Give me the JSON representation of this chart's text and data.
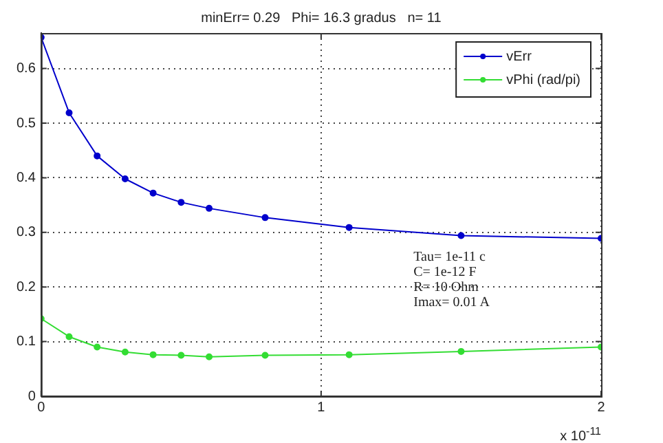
{
  "chart_data": {
    "type": "line",
    "title": "minErr= 0.29   Phi= 16.3 gradus   n= 11",
    "xlabel": "x 10$^{-11}$",
    "x": [
      0,
      0.1,
      0.2,
      0.3,
      0.4,
      0.5,
      0.6,
      0.8,
      1.1,
      1.5,
      2
    ],
    "series": [
      {
        "name": "vErr",
        "color": "#0000cc",
        "values": [
          0.657,
          0.519,
          0.44,
          0.398,
          0.372,
          0.355,
          0.344,
          0.327,
          0.309,
          0.294,
          0.289
        ]
      },
      {
        "name": "vPhi (rad/pi)",
        "color": "#33dd33",
        "values": [
          0.142,
          0.109,
          0.09,
          0.081,
          0.076,
          0.075,
          0.072,
          0.075,
          0.076,
          0.082,
          0.09
        ]
      }
    ],
    "xlim": [
      0,
      2
    ],
    "xticks": [
      0,
      1,
      2
    ],
    "ylim": [
      0,
      0.665
    ],
    "yticks": [
      0,
      0.1,
      0.2,
      0.3,
      0.4,
      0.5,
      0.6
    ],
    "grid": true,
    "legend": "top right",
    "marker": "circle",
    "line_style": "solid",
    "annotations": [
      "Tau= 1e-11 c",
      "C= 1e-12 F",
      "R= 10 Ohm",
      "Imax= 0.01 A"
    ]
  }
}
